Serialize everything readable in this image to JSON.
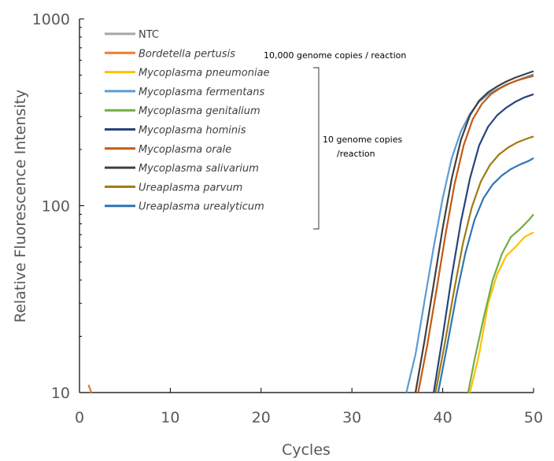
{
  "chart_data": {
    "type": "line",
    "title": "",
    "xlabel": "Cycles",
    "ylabel": "Relative Fluorescence Intensity",
    "xlim": [
      0,
      50
    ],
    "ylim": [
      10,
      1000
    ],
    "yscale": "log",
    "grid": false,
    "legend_position": "top-left",
    "x_ticks": [
      {
        "value": 0,
        "label": "0"
      },
      {
        "value": 10,
        "label": "10"
      },
      {
        "value": 20,
        "label": "20"
      },
      {
        "value": 30,
        "label": "30"
      },
      {
        "value": 40,
        "label": "40"
      },
      {
        "value": 50,
        "label": "50"
      }
    ],
    "y_ticks": [
      {
        "value": 10,
        "label": "10"
      },
      {
        "value": 100,
        "label": "100"
      },
      {
        "value": 1000,
        "label": "1000"
      }
    ],
    "annotations": [
      {
        "text": "10,000 genome copies / reaction"
      },
      {
        "lines": [
          "10 genome copies",
          "/reaction"
        ]
      }
    ],
    "series": [
      {
        "name": "NTC",
        "italic": false,
        "color": "#a5a5a5",
        "points": [
          [
            1,
            11
          ],
          [
            1.3,
            10
          ]
        ]
      },
      {
        "name": "Bordetella pertusis",
        "italic": true,
        "color": "#ed7d31",
        "points": [
          [
            1,
            11
          ],
          [
            1.3,
            10
          ]
        ]
      },
      {
        "name": "Mycoplasma pneumoniae",
        "italic": true,
        "color": "#ffc000",
        "points": [
          [
            43,
            10
          ],
          [
            44,
            16
          ],
          [
            45,
            30
          ],
          [
            46,
            43
          ],
          [
            47,
            54
          ],
          [
            48,
            60
          ],
          [
            49,
            68
          ],
          [
            50,
            72
          ]
        ]
      },
      {
        "name": "Mycoplasma fermentans",
        "italic": true,
        "color": "#5b9bd5",
        "points": [
          [
            36,
            10
          ],
          [
            37,
            16
          ],
          [
            38,
            31
          ],
          [
            39,
            60
          ],
          [
            40,
            110
          ],
          [
            41,
            180
          ],
          [
            42,
            250
          ],
          [
            43,
            310
          ],
          [
            44,
            360
          ],
          [
            45,
            395
          ],
          [
            46,
            420
          ],
          [
            47,
            445
          ],
          [
            48,
            465
          ],
          [
            49,
            485
          ],
          [
            50,
            505
          ]
        ]
      },
      {
        "name": "Mycoplasma genitalium",
        "italic": true,
        "color": "#70ad47",
        "points": [
          [
            42.8,
            10
          ],
          [
            43.5,
            15
          ],
          [
            44.5,
            25
          ],
          [
            45.5,
            40
          ],
          [
            46.5,
            55
          ],
          [
            47.5,
            68
          ],
          [
            48.5,
            75
          ],
          [
            49.5,
            84
          ],
          [
            50,
            90
          ]
        ]
      },
      {
        "name": "Mycoplasma hominis",
        "italic": true,
        "color": "#264478",
        "points": [
          [
            39,
            10
          ],
          [
            40,
            20
          ],
          [
            41,
            42
          ],
          [
            42,
            82
          ],
          [
            43,
            140
          ],
          [
            44,
            210
          ],
          [
            45,
            265
          ],
          [
            46,
            305
          ],
          [
            47,
            335
          ],
          [
            48,
            360
          ],
          [
            49,
            380
          ],
          [
            50,
            395
          ]
        ]
      },
      {
        "name": "Mycoplasma orale",
        "italic": true,
        "color": "#c55a11",
        "points": [
          [
            37.3,
            10
          ],
          [
            38.3,
            18
          ],
          [
            39.3,
            35
          ],
          [
            40.3,
            70
          ],
          [
            41.3,
            130
          ],
          [
            42.3,
            210
          ],
          [
            43.3,
            290
          ],
          [
            44.3,
            350
          ],
          [
            45.3,
            395
          ],
          [
            46.3,
            425
          ],
          [
            47.3,
            450
          ],
          [
            48.3,
            470
          ],
          [
            49.3,
            485
          ],
          [
            50,
            495
          ]
        ]
      },
      {
        "name": "Mycoplasma salivarium",
        "italic": true,
        "color": "#404040",
        "points": [
          [
            37,
            10
          ],
          [
            38,
            19
          ],
          [
            39,
            38
          ],
          [
            40,
            76
          ],
          [
            41,
            140
          ],
          [
            42,
            225
          ],
          [
            43,
            305
          ],
          [
            44,
            365
          ],
          [
            45,
            405
          ],
          [
            46,
            435
          ],
          [
            47,
            462
          ],
          [
            48,
            485
          ],
          [
            49,
            505
          ],
          [
            50,
            525
          ]
        ]
      },
      {
        "name": "Ureaplasma parvum",
        "italic": true,
        "color": "#9e7b10",
        "points": [
          [
            39.2,
            10
          ],
          [
            40.2,
            18
          ],
          [
            41.2,
            34
          ],
          [
            42.2,
            62
          ],
          [
            43.2,
            98
          ],
          [
            44.2,
            135
          ],
          [
            45.2,
            165
          ],
          [
            46.2,
            188
          ],
          [
            47.2,
            205
          ],
          [
            48.2,
            218
          ],
          [
            49.2,
            228
          ],
          [
            50,
            235
          ]
        ]
      },
      {
        "name": "Ureaplasma urealyticum",
        "italic": true,
        "color": "#2e75b6",
        "points": [
          [
            39.5,
            10
          ],
          [
            40.5,
            18
          ],
          [
            41.5,
            33
          ],
          [
            42.5,
            56
          ],
          [
            43.5,
            84
          ],
          [
            44.5,
            110
          ],
          [
            45.5,
            130
          ],
          [
            46.5,
            145
          ],
          [
            47.5,
            157
          ],
          [
            48.5,
            166
          ],
          [
            49.5,
            174
          ],
          [
            50,
            180
          ]
        ]
      }
    ]
  }
}
